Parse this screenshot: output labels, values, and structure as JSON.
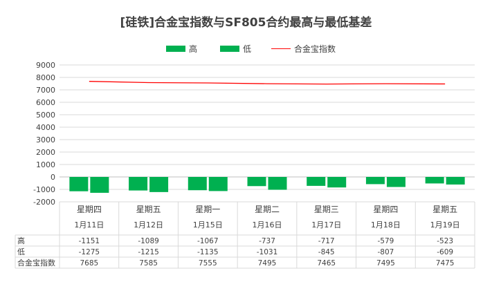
{
  "chart_data": {
    "type": "bar",
    "title": "[硅铁]合金宝指数与SF805合约最高与最低基差",
    "categories": [
      "星期四",
      "星期五",
      "星期一",
      "星期二",
      "星期三",
      "星期四",
      "星期五"
    ],
    "dates": [
      "1月11日",
      "1月12日",
      "1月15日",
      "1月16日",
      "1月17日",
      "1月18日",
      "1月19日"
    ],
    "series": [
      {
        "name": "高",
        "type": "bar",
        "color": "#00b050",
        "values": [
          -1151,
          -1089,
          -1067,
          -737,
          -717,
          -579,
          -523
        ]
      },
      {
        "name": "低",
        "type": "bar",
        "color": "#00b050",
        "values": [
          -1275,
          -1215,
          -1135,
          -1031,
          -845,
          -807,
          -609
        ]
      },
      {
        "name": "合金宝指数",
        "type": "line",
        "color": "#ff0000",
        "values": [
          7685,
          7585,
          7555,
          7495,
          7465,
          7495,
          7475
        ]
      }
    ],
    "ylim": [
      -2000,
      9000
    ],
    "yticks": [
      9000,
      8000,
      7000,
      6000,
      5000,
      4000,
      3000,
      2000,
      1000,
      0,
      -1000,
      -2000
    ],
    "grid": true,
    "legend_position": "top",
    "data_table": true
  }
}
